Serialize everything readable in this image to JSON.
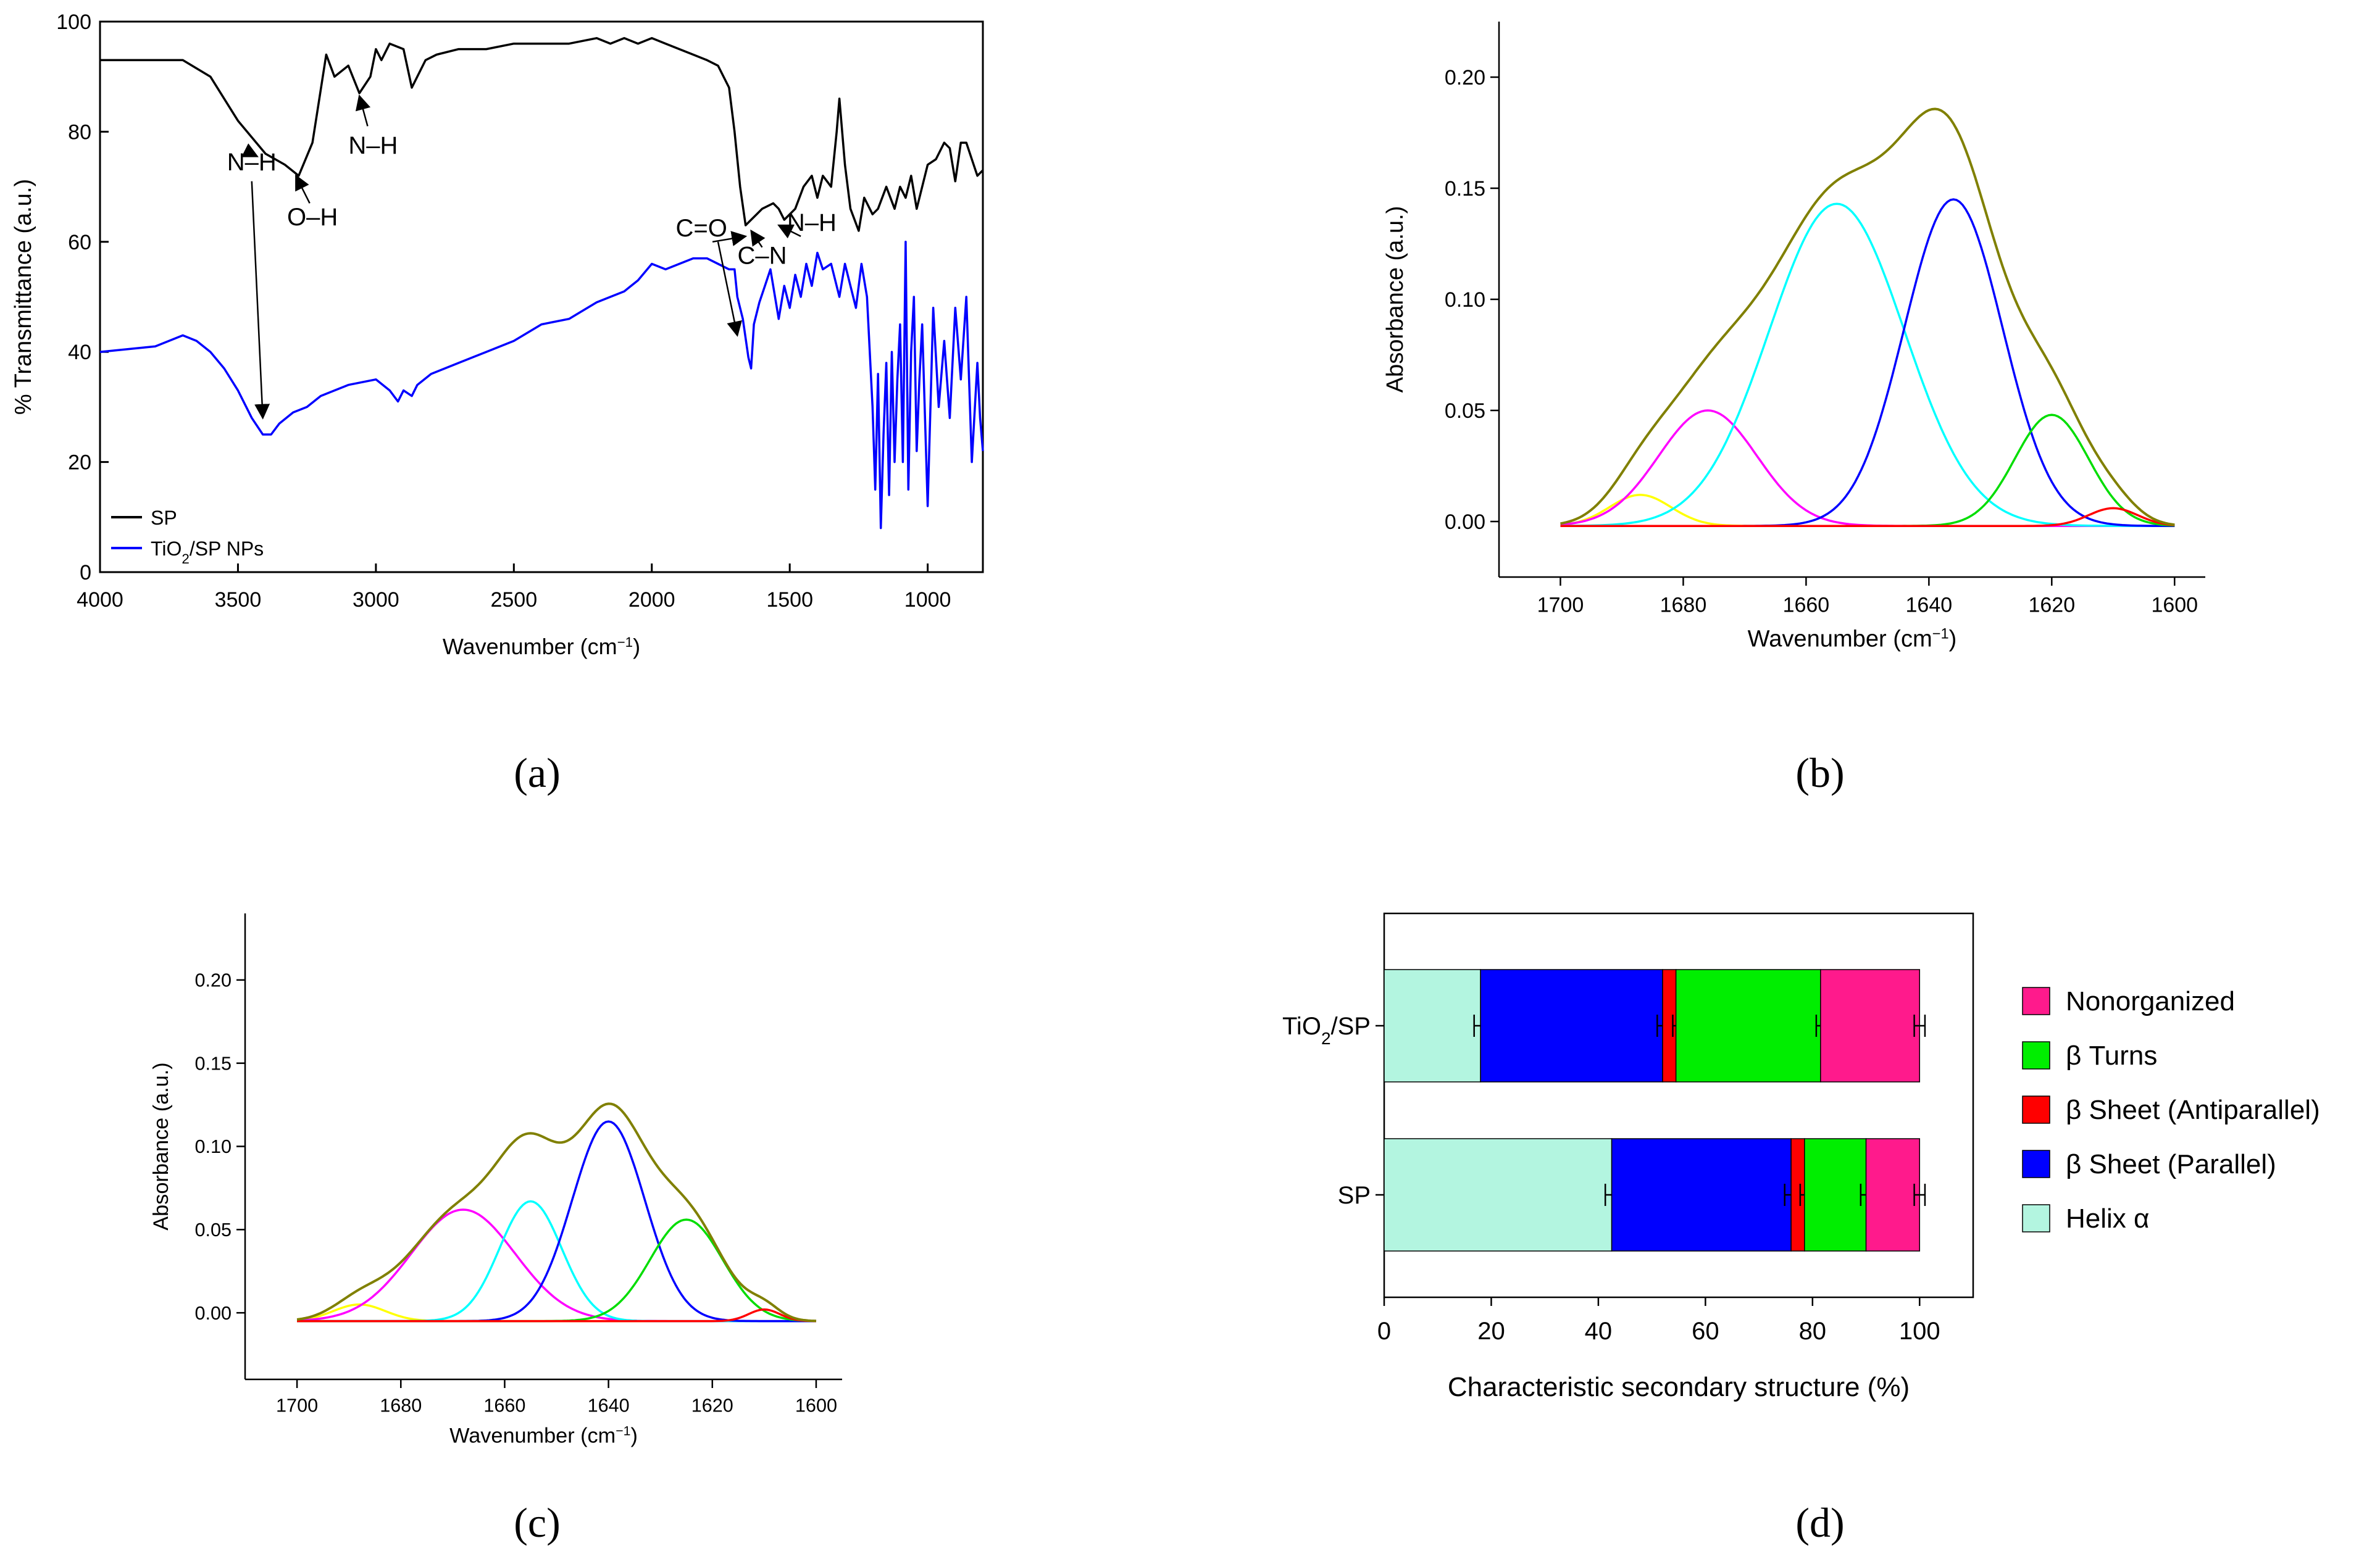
{
  "chart_data": [
    {
      "panel": "(a)",
      "type": "line",
      "xlabel": "Wavenumber (cm⁻¹)",
      "ylabel": "% Transmittance (a.u.)",
      "xlim": [
        4000,
        800
      ],
      "ylim": [
        0,
        100
      ],
      "x_ticks": [
        4000,
        3500,
        3000,
        2500,
        2000,
        1500,
        1000
      ],
      "y_ticks": [
        0,
        20,
        40,
        60,
        80,
        100
      ],
      "legend_position": "bottom-left",
      "series": [
        {
          "name": "SP",
          "color": "#000000",
          "x": [
            4000,
            3700,
            3600,
            3500,
            3400,
            3330,
            3280,
            3230,
            3180,
            3150,
            3100,
            3060,
            3020,
            3000,
            2980,
            2950,
            2900,
            2870,
            2820,
            2780,
            2700,
            2600,
            2500,
            2400,
            2300,
            2200,
            2150,
            2100,
            2050,
            2000,
            1950,
            1900,
            1850,
            1800,
            1760,
            1720,
            1700,
            1680,
            1660,
            1640,
            1620,
            1600,
            1560,
            1540,
            1520,
            1480,
            1450,
            1420,
            1400,
            1380,
            1350,
            1330,
            1320,
            1300,
            1280,
            1250,
            1230,
            1200,
            1180,
            1150,
            1120,
            1100,
            1080,
            1060,
            1040,
            1000,
            970,
            940,
            920,
            900,
            880,
            860,
            840,
            820,
            800
          ],
          "y": [
            93,
            93,
            90,
            82,
            76,
            74,
            72,
            78,
            94,
            90,
            92,
            87,
            90,
            95,
            93,
            96,
            95,
            88,
            93,
            94,
            95,
            95,
            96,
            96,
            96,
            97,
            96,
            97,
            96,
            97,
            96,
            95,
            94,
            93,
            92,
            88,
            80,
            70,
            63,
            64,
            65,
            66,
            67,
            66,
            64,
            66,
            70,
            72,
            68,
            72,
            70,
            80,
            86,
            74,
            66,
            62,
            68,
            65,
            66,
            70,
            66,
            70,
            68,
            72,
            66,
            74,
            75,
            78,
            77,
            71,
            78,
            78,
            75,
            72,
            73
          ]
        },
        {
          "name": "TiO₂/SP NPs",
          "color": "#0000ff",
          "x": [
            4000,
            3800,
            3700,
            3650,
            3600,
            3550,
            3500,
            3450,
            3410,
            3380,
            3350,
            3300,
            3250,
            3200,
            3100,
            3000,
            2950,
            2920,
            2900,
            2870,
            2850,
            2800,
            2700,
            2600,
            2500,
            2400,
            2300,
            2200,
            2150,
            2100,
            2050,
            2000,
            1950,
            1900,
            1850,
            1800,
            1760,
            1720,
            1700,
            1690,
            1670,
            1650,
            1640,
            1630,
            1610,
            1590,
            1570,
            1540,
            1520,
            1500,
            1480,
            1460,
            1440,
            1420,
            1400,
            1380,
            1350,
            1320,
            1300,
            1280,
            1260,
            1240,
            1220,
            1200,
            1190,
            1180,
            1170,
            1160,
            1150,
            1140,
            1130,
            1120,
            1110,
            1100,
            1090,
            1080,
            1070,
            1060,
            1050,
            1040,
            1030,
            1020,
            1000,
            980,
            960,
            940,
            920,
            900,
            880,
            860,
            840,
            820,
            810,
            800
          ],
          "y": [
            40,
            41,
            43,
            42,
            40,
            37,
            33,
            28,
            25,
            25,
            27,
            29,
            30,
            32,
            34,
            35,
            33,
            31,
            33,
            32,
            34,
            36,
            38,
            40,
            42,
            45,
            46,
            49,
            50,
            51,
            53,
            56,
            55,
            56,
            57,
            57,
            56,
            55,
            55,
            50,
            46,
            39,
            37,
            45,
            49,
            52,
            55,
            46,
            52,
            48,
            54,
            50,
            56,
            52,
            58,
            55,
            56,
            50,
            56,
            52,
            48,
            56,
            50,
            30,
            15,
            36,
            8,
            25,
            38,
            14,
            40,
            20,
            35,
            45,
            20,
            60,
            15,
            40,
            50,
            22,
            35,
            45,
            12,
            48,
            30,
            42,
            28,
            48,
            35,
            50,
            20,
            38,
            28,
            22
          ]
        }
      ],
      "annotations": [
        {
          "text": "N–H",
          "x": 3450,
          "y": 73
        },
        {
          "text": "O–H",
          "x": 3230,
          "y": 63
        },
        {
          "text": "N–H",
          "x": 3010,
          "y": 76
        },
        {
          "text": "C=O",
          "x": 1820,
          "y": 61
        },
        {
          "text": "C–N",
          "x": 1600,
          "y": 56
        },
        {
          "text": "N–H",
          "x": 1420,
          "y": 62
        }
      ]
    },
    {
      "panel": "(b)",
      "type": "line",
      "xlabel": "Wavenumber (cm⁻¹)",
      "ylabel": "Absorbance (a.u.)",
      "xlim": [
        1710,
        1595
      ],
      "ylim": [
        -0.025,
        0.225
      ],
      "x_ticks": [
        1700,
        1680,
        1660,
        1640,
        1620,
        1600
      ],
      "y_ticks": [
        0.0,
        0.05,
        0.1,
        0.15,
        0.2
      ],
      "y_tick_labels": [
        "0.00",
        "0.05",
        "0.10",
        "0.15",
        "0.20"
      ],
      "x_range": [
        1700,
        1600
      ],
      "baseline": -0.002,
      "components": [
        {
          "color": "#ffff00",
          "center": 1687,
          "height": 0.014,
          "width": 5
        },
        {
          "color": "#ff00ff",
          "center": 1676,
          "height": 0.052,
          "width": 8
        },
        {
          "color": "#00ffff",
          "center": 1655,
          "height": 0.145,
          "width": 11
        },
        {
          "color": "#0000ff",
          "center": 1636,
          "height": 0.147,
          "width": 8
        },
        {
          "color": "#00dd00",
          "center": 1620,
          "height": 0.05,
          "width": 6
        },
        {
          "color": "#ff0000",
          "center": 1610,
          "height": 0.008,
          "width": 4
        }
      ],
      "envelope_color": "#808000"
    },
    {
      "panel": "(c)",
      "type": "line",
      "xlabel": "Wavenumber (cm⁻¹)",
      "ylabel": "Absorbance (a.u.)",
      "xlim": [
        1710,
        1595
      ],
      "ylim": [
        -0.04,
        0.24
      ],
      "x_ticks": [
        1700,
        1680,
        1660,
        1640,
        1620,
        1600
      ],
      "y_ticks": [
        0.0,
        0.05,
        0.1,
        0.15,
        0.2
      ],
      "y_tick_labels": [
        "0.00",
        "0.05",
        "0.10",
        "0.15",
        "0.20"
      ],
      "x_range": [
        1700,
        1600
      ],
      "baseline": -0.005,
      "components": [
        {
          "color": "#ffff00",
          "center": 1688,
          "height": 0.01,
          "width": 5
        },
        {
          "color": "#ff00ff",
          "center": 1668,
          "height": 0.067,
          "width": 10
        },
        {
          "color": "#00ffff",
          "center": 1655,
          "height": 0.072,
          "width": 6
        },
        {
          "color": "#0000ff",
          "center": 1640,
          "height": 0.12,
          "width": 7
        },
        {
          "color": "#00dd00",
          "center": 1625,
          "height": 0.061,
          "width": 7
        },
        {
          "color": "#ff0000",
          "center": 1610,
          "height": 0.007,
          "width": 3
        }
      ],
      "envelope_color": "#808000"
    },
    {
      "panel": "(d)",
      "type": "bar",
      "orientation": "horizontal",
      "stacked": true,
      "xlabel": "Characteristic secondary structure (%)",
      "ylabel": "",
      "xlim": [
        0,
        110
      ],
      "x_ticks": [
        0,
        20,
        40,
        60,
        80,
        100
      ],
      "categories": [
        "TiO₂/SP",
        "SP"
      ],
      "legend_position": "right",
      "series": [
        {
          "name": "Helix α",
          "color": "#b3f5e0",
          "values": [
            18,
            42.5
          ],
          "errors": [
            1.2,
            1.2
          ]
        },
        {
          "name": "β Sheet (Parallel)",
          "color": "#0000ff",
          "values": [
            34,
            33.5
          ],
          "errors": [
            1.0,
            1.2
          ]
        },
        {
          "name": "β Sheet (Antiparallel)",
          "color": "#ff0000",
          "values": [
            2.5,
            2.5
          ],
          "errors": [
            0.6,
            0.8
          ]
        },
        {
          "name": "β Turns",
          "color": "#00ee00",
          "values": [
            27,
            11.5
          ],
          "errors": [
            0.8,
            1.0
          ]
        },
        {
          "name": "Nonorganized",
          "color": "#ff1a8c",
          "values": [
            18.5,
            10
          ],
          "errors": [
            1.0,
            1.0
          ]
        }
      ],
      "legend_order": [
        "Nonorganized",
        "β Turns",
        "β Sheet (Antiparallel)",
        "β Sheet (Parallel)",
        "Helix α"
      ]
    }
  ]
}
